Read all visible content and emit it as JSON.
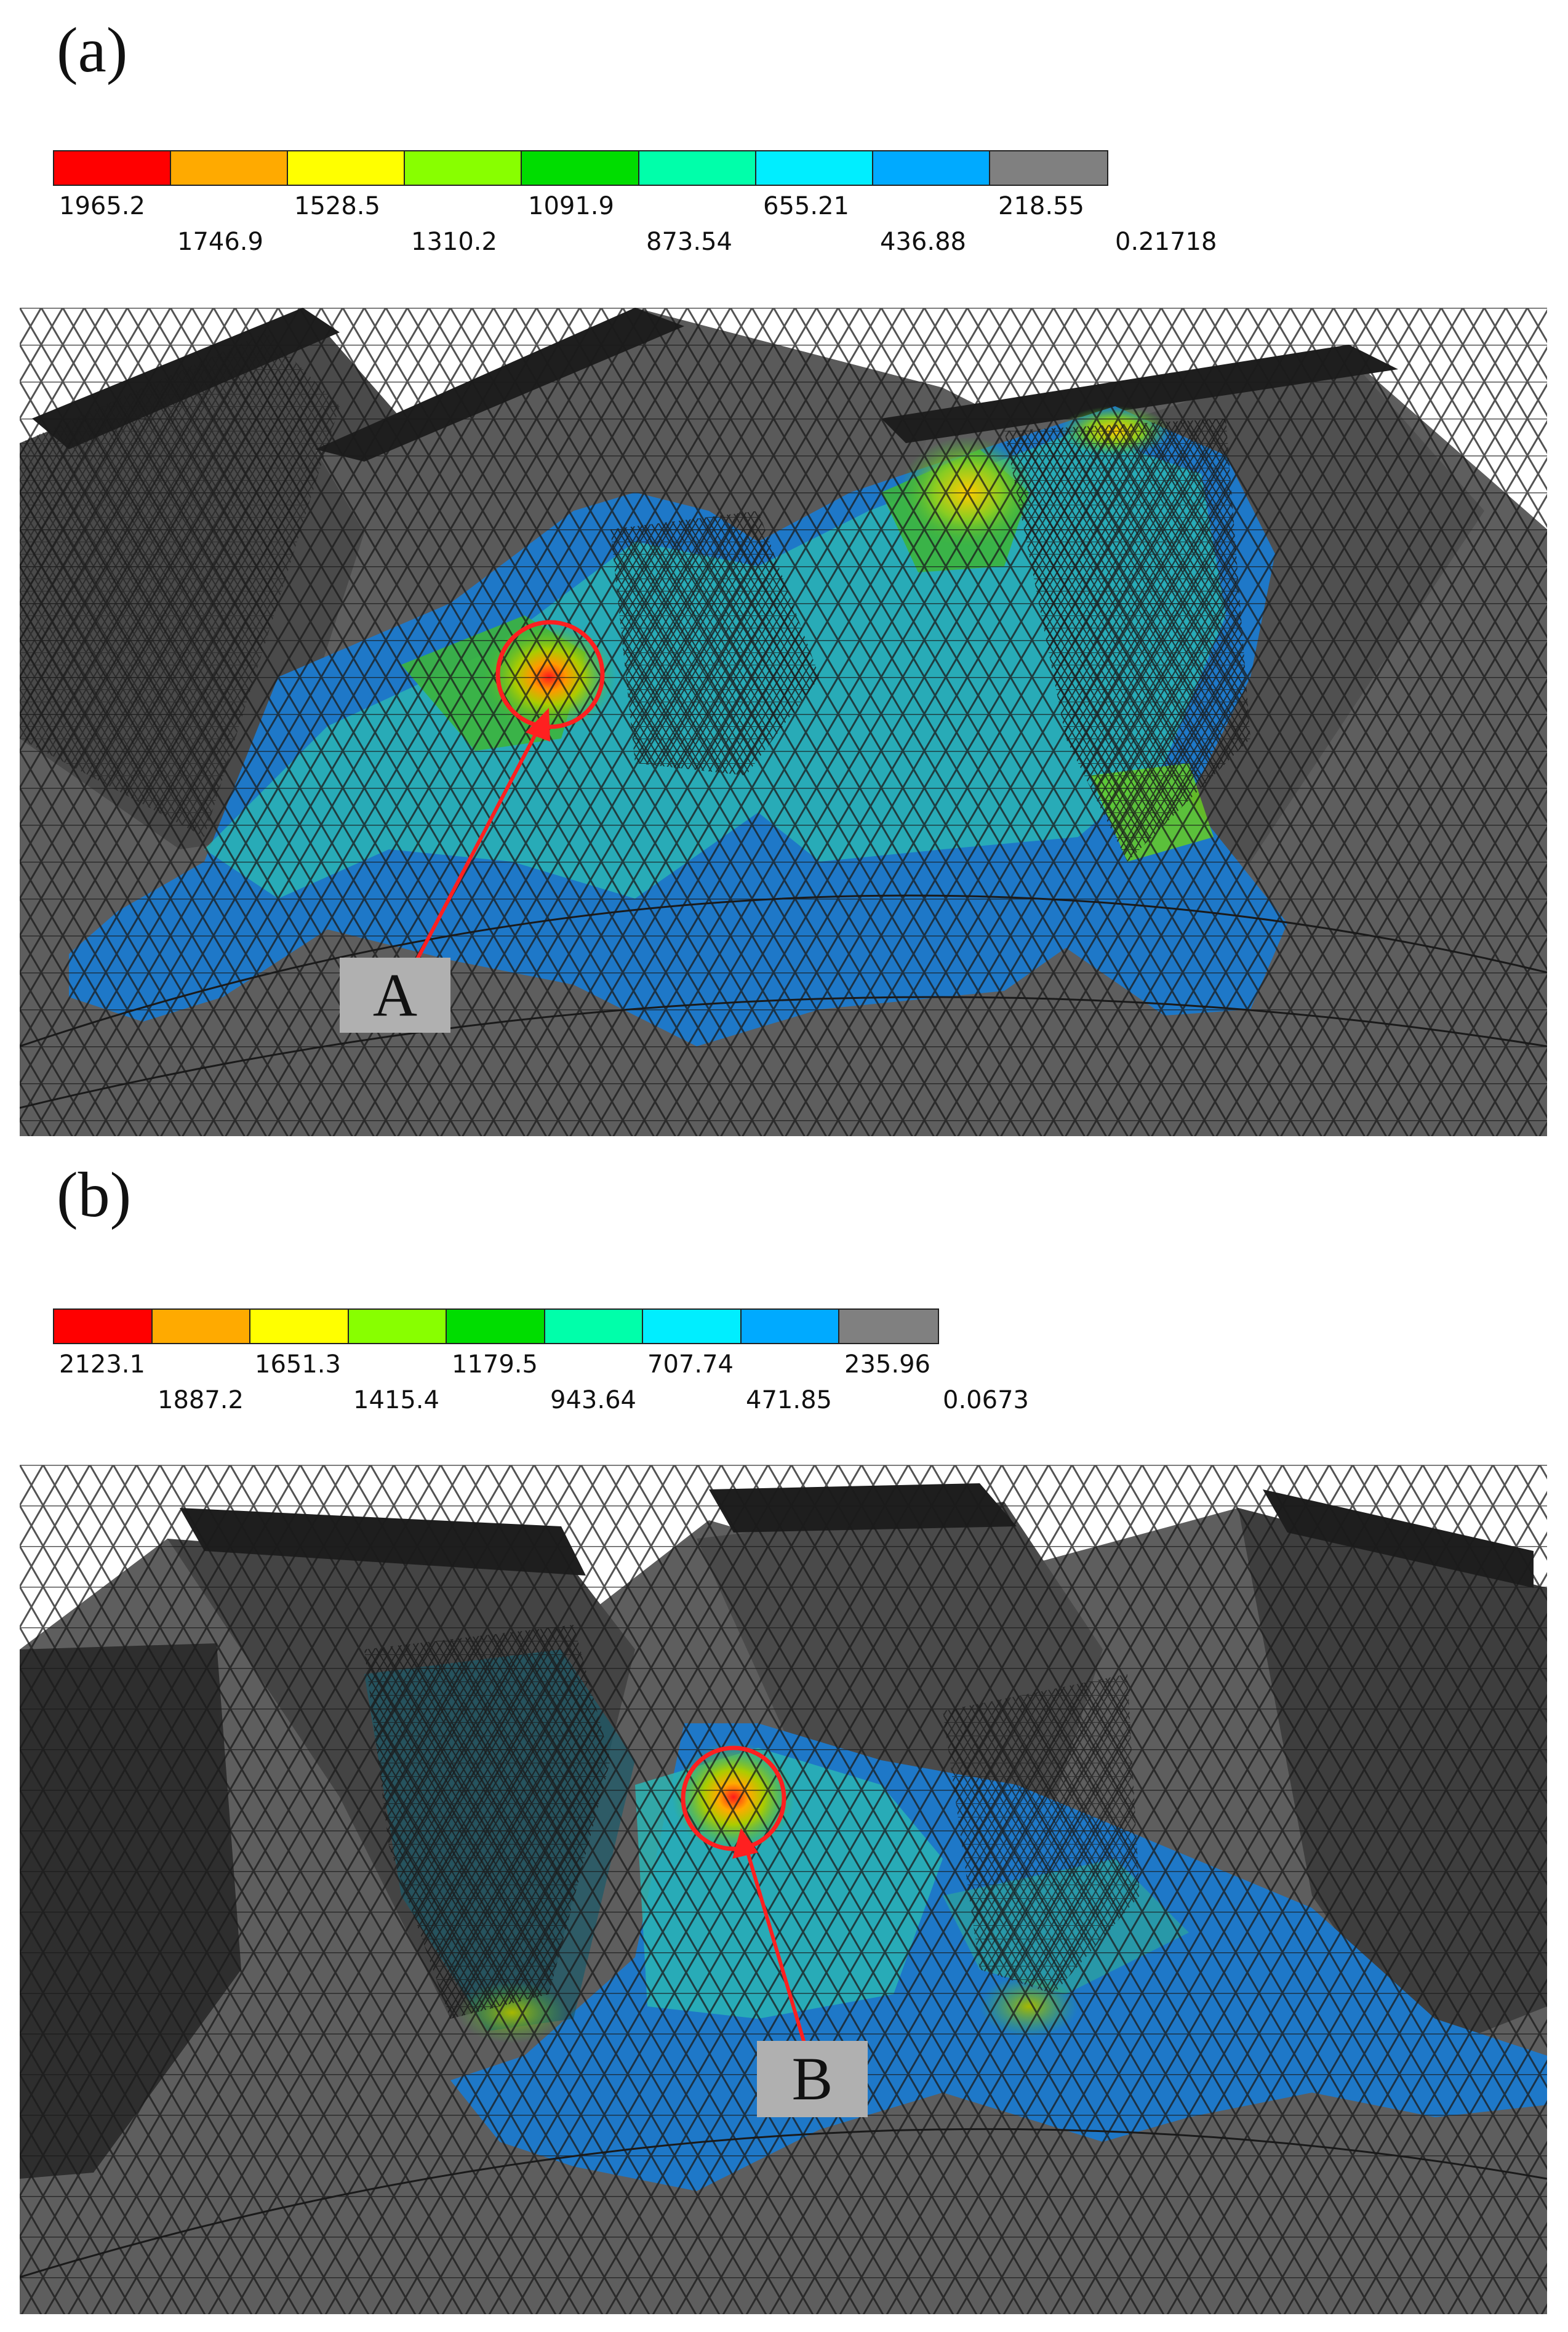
{
  "panels": [
    {
      "label": "(a)",
      "legend": {
        "colors": [
          "#ff0000",
          "#ffaa00",
          "#ffff00",
          "#88ff00",
          "#00dd00",
          "#00ffaa",
          "#00eeff",
          "#00aaff",
          "#808080"
        ],
        "ticks_top": [
          "1965.2",
          "1528.5",
          "1091.9",
          "655.21",
          "218.55"
        ],
        "ticks_bottom": [
          "1746.9",
          "1310.2",
          "873.54",
          "436.88",
          "0.21718"
        ]
      },
      "marker": "A"
    },
    {
      "label": "(b)",
      "legend": {
        "colors": [
          "#ff0000",
          "#ffaa00",
          "#ffff00",
          "#88ff00",
          "#00dd00",
          "#00ffaa",
          "#00eeff",
          "#00aaff",
          "#808080"
        ],
        "ticks_top": [
          "2123.1",
          "1651.3",
          "1179.5",
          "707.74",
          "235.96"
        ],
        "ticks_bottom": [
          "1887.2",
          "1415.4",
          "943.64",
          "471.85",
          "0.0673"
        ]
      },
      "marker": "B"
    }
  ],
  "colors": {
    "mesh_dark": "#3c3c3c",
    "mesh_face": "#5e5e5e",
    "stress_blue": "#1e78c8",
    "stress_cyan": "#2ab4b4",
    "stress_green": "#3cb43c",
    "hot_red": "#ff1a1a",
    "marker_circle": "#ff2020"
  }
}
